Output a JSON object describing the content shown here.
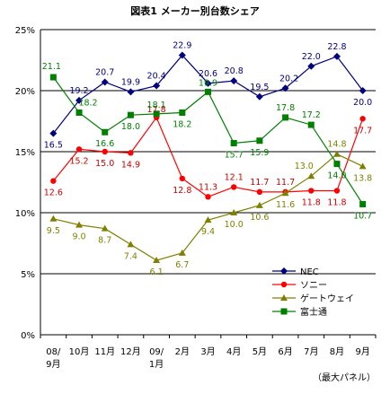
{
  "chart_data": {
    "type": "line",
    "title": "図表1 メーカー別台数シェア",
    "note": "（最大パネル）",
    "y_ticks": [
      "25%",
      "20%",
      "15%",
      "10%",
      "5%",
      "0%"
    ],
    "ylim": [
      0,
      25
    ],
    "categories": [
      {
        "line1": "08/",
        "line2": "9月"
      },
      {
        "line1": "10月",
        "line2": ""
      },
      {
        "line1": "11月",
        "line2": ""
      },
      {
        "line1": "12月",
        "line2": ""
      },
      {
        "line1": "09/",
        "line2": "1月"
      },
      {
        "line1": "2月",
        "line2": ""
      },
      {
        "line1": "3月",
        "line2": ""
      },
      {
        "line1": "4月",
        "line2": ""
      },
      {
        "line1": "5月",
        "line2": ""
      },
      {
        "line1": "6月",
        "line2": ""
      },
      {
        "line1": "7月",
        "line2": ""
      },
      {
        "line1": "8月",
        "line2": ""
      },
      {
        "line1": "9月",
        "line2": ""
      }
    ],
    "series": [
      {
        "name": "NEC",
        "color": "#000080",
        "label_color": "#000080",
        "marker": "diamond",
        "values": [
          16.5,
          19.2,
          20.7,
          19.9,
          20.4,
          22.9,
          20.6,
          20.8,
          19.5,
          20.2,
          22.0,
          22.8,
          20.0
        ],
        "labels": [
          "16.5",
          "19.2",
          "20.7",
          "19.9",
          "20.4",
          "22.9",
          "20.6",
          "20.8",
          "19.5",
          "20.2",
          "22.0",
          "22.8",
          "20.0"
        ]
      },
      {
        "name": "ソニー",
        "color": "#ff0000",
        "label_color": "#cc0000",
        "marker": "circle",
        "values": [
          12.6,
          15.2,
          15.0,
          14.9,
          17.8,
          12.8,
          11.3,
          12.1,
          11.7,
          11.7,
          11.8,
          11.8,
          17.7
        ],
        "labels": [
          "12.6",
          "15.2",
          "15.0",
          "14.9",
          "17.8",
          "12.8",
          "11.3",
          "12.1",
          "11.7",
          "11.7",
          "11.8",
          "11.8",
          "17.7"
        ]
      },
      {
        "name": "ゲートウェイ",
        "color": "#808000",
        "label_color": "#808000",
        "marker": "triangle",
        "values": [
          9.5,
          9.0,
          8.7,
          7.4,
          6.1,
          6.7,
          9.4,
          10.0,
          10.6,
          11.6,
          13.0,
          14.8,
          13.8
        ],
        "labels": [
          "9.5",
          "9.0",
          "8.7",
          "7.4",
          "6.1",
          "6.7",
          "9.4",
          "10.0",
          "10.6",
          "11.6",
          "13.0",
          "14.8",
          "13.8"
        ]
      },
      {
        "name": "富士通",
        "color": "#008000",
        "label_color": "#008000",
        "marker": "square",
        "values": [
          21.1,
          18.2,
          16.6,
          18.0,
          18.1,
          18.2,
          19.9,
          15.7,
          15.9,
          17.8,
          17.2,
          14.0,
          10.7
        ],
        "labels": [
          "21.1",
          "18.2",
          "16.6",
          "18.0",
          "18.1",
          "18.2",
          "19.9",
          "15.7",
          "15.9",
          "17.8",
          "17.2",
          "14.0",
          "10.7"
        ]
      }
    ]
  }
}
